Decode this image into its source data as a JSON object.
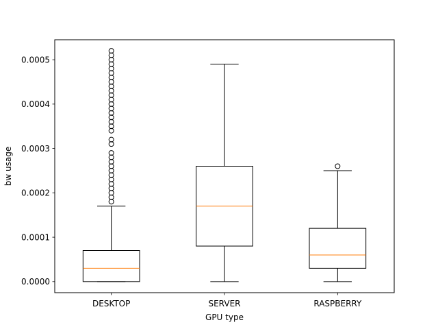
{
  "chart_data": {
    "type": "box",
    "title": "",
    "xlabel": "GPU type",
    "ylabel": "bw usage",
    "ylim": [
      -2.5e-05,
      0.000545
    ],
    "yticks": [
      0.0,
      0.0001,
      0.0002,
      0.0003,
      0.0004,
      0.0005
    ],
    "ytick_labels": [
      "0.0000",
      "0.0001",
      "0.0002",
      "0.0003",
      "0.0004",
      "0.0005"
    ],
    "grid": false,
    "colors": {
      "box": "#000000",
      "median": "#ff7f0e",
      "flier": "#000000"
    },
    "categories": [
      "DESKTOP",
      "SERVER",
      "RASPBERRY"
    ],
    "boxes": [
      {
        "label": "DESKTOP",
        "whisker_low": 0.0,
        "q1": 0.0,
        "median": 3e-05,
        "q3": 7e-05,
        "whisker_high": 0.00017,
        "fliers": [
          0.00018,
          0.00019,
          0.0002,
          0.00021,
          0.00022,
          0.00023,
          0.00024,
          0.00025,
          0.00026,
          0.00027,
          0.00028,
          0.00029,
          0.00031,
          0.00032,
          0.00034,
          0.00035,
          0.00036,
          0.00037,
          0.00038,
          0.00039,
          0.0004,
          0.00041,
          0.00042,
          0.00043,
          0.00044,
          0.00045,
          0.00046,
          0.00047,
          0.00048,
          0.00049,
          0.0005,
          0.00051,
          0.00052
        ]
      },
      {
        "label": "SERVER",
        "whisker_low": 0.0,
        "q1": 8e-05,
        "median": 0.00017,
        "q3": 0.00026,
        "whisker_high": 0.00049,
        "fliers": []
      },
      {
        "label": "RASPBERRY",
        "whisker_low": 0.0,
        "q1": 3e-05,
        "median": 6e-05,
        "q3": 0.00012,
        "whisker_high": 0.00025,
        "fliers": [
          0.00026
        ]
      }
    ]
  }
}
